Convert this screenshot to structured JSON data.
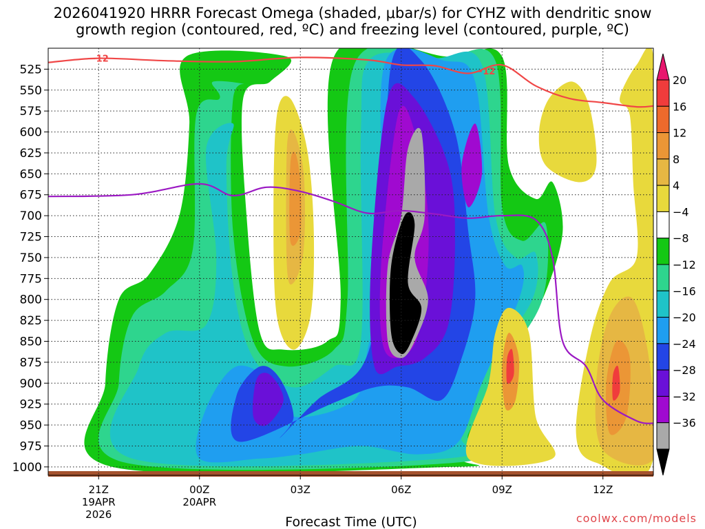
{
  "chart_data": {
    "type": "heatmap",
    "title_line1": "2026041920 HRRR Forecast Omega (shaded, μbar/s) for CYHZ with dendritic snow",
    "title_line2": "growth region (contoured, red, ºC) and freezing level (contoured, purple, ºC)",
    "xlabel": "Forecast Time (UTC)",
    "credit": "coolwx.com/models",
    "x_range_hours": [
      -1.5,
      16.5
    ],
    "y_range_hpa": [
      500,
      1010
    ],
    "x_ticks": [
      {
        "hour": 0,
        "label": "21Z",
        "sub1": "19APR",
        "sub2": "2026"
      },
      {
        "hour": 3,
        "label": "00Z",
        "sub1": "20APR",
        "sub2": ""
      },
      {
        "hour": 6,
        "label": "03Z",
        "sub1": "",
        "sub2": ""
      },
      {
        "hour": 9,
        "label": "06Z",
        "sub1": "",
        "sub2": ""
      },
      {
        "hour": 12,
        "label": "09Z",
        "sub1": "",
        "sub2": ""
      },
      {
        "hour": 15,
        "label": "12Z",
        "sub1": "",
        "sub2": ""
      }
    ],
    "y_ticks": [
      "525",
      "550",
      "575",
      "600",
      "625",
      "650",
      "675",
      "700",
      "725",
      "750",
      "775",
      "800",
      "825",
      "850",
      "875",
      "900",
      "925",
      "950",
      "975",
      "1000"
    ],
    "colorbar": {
      "labels": [
        "20",
        "16",
        "12",
        "8",
        "4",
        "−4",
        "−8",
        "−12",
        "−16",
        "−20",
        "−24",
        "−28",
        "−32",
        "−36"
      ],
      "colors_top_to_bottom": [
        "#e8176e",
        "#f03c3c",
        "#ee6a2c",
        "#eb9636",
        "#e6b743",
        "#e8d93c",
        "#ffffff",
        "#14c814",
        "#2ed58e",
        "#1fc3c8",
        "#1f9ef0",
        "#2345e6",
        "#6a10d8",
        "#a00ad0",
        "#a9a9a9",
        "#000000"
      ]
    },
    "contours": {
      "dgz_label": "−12",
      "dgz_color": "#f04646",
      "freezing_color": "#9b19c3",
      "dgz_minus12_line": [
        [
          -1.5,
          517
        ],
        [
          0,
          512
        ],
        [
          2,
          515
        ],
        [
          4,
          516
        ],
        [
          6,
          511
        ],
        [
          8,
          514
        ],
        [
          9,
          520
        ],
        [
          10,
          521
        ],
        [
          11,
          530
        ],
        [
          12,
          520
        ],
        [
          13,
          545
        ],
        [
          14,
          560
        ],
        [
          15,
          565
        ],
        [
          16,
          570
        ],
        [
          16.5,
          569
        ]
      ],
      "freezing_level_line": [
        [
          -1.5,
          677
        ],
        [
          1,
          675
        ],
        [
          3,
          662
        ],
        [
          4,
          676
        ],
        [
          5,
          666
        ],
        [
          6,
          671
        ],
        [
          7,
          683
        ],
        [
          8,
          697
        ],
        [
          9,
          694
        ],
        [
          10,
          698
        ],
        [
          11,
          703
        ],
        [
          12,
          700
        ],
        [
          13,
          705
        ],
        [
          13.5,
          750
        ],
        [
          13.8,
          850
        ],
        [
          14.5,
          880
        ],
        [
          15,
          920
        ],
        [
          16,
          945
        ],
        [
          16.5,
          948
        ]
      ]
    },
    "omega_regions": [
      {
        "level": "-8",
        "color": "#14c814",
        "pts": [
          [
            0.4,
            1000
          ],
          [
            0.2,
            900
          ],
          [
            0.6,
            800
          ],
          [
            1.5,
            770
          ],
          [
            2.4,
            700
          ],
          [
            2.7,
            590
          ],
          [
            2.6,
            510
          ],
          [
            5.6,
            510
          ],
          [
            5.1,
            540
          ],
          [
            4.3,
            560
          ],
          [
            4.4,
            700
          ],
          [
            4.8,
            840
          ],
          [
            5.5,
            860
          ],
          [
            6.8,
            850
          ],
          [
            7.2,
            800
          ],
          [
            7.0,
            510
          ],
          [
            10.4,
            510
          ],
          [
            12.0,
            510
          ],
          [
            12.2,
            640
          ],
          [
            13.0,
            680
          ],
          [
            13.5,
            660
          ],
          [
            13.8,
            720
          ],
          [
            13.2,
            800
          ],
          [
            12.3,
            860
          ],
          [
            11.2,
            950
          ],
          [
            10.8,
            990
          ],
          [
            10.5,
            1000
          ]
        ]
      },
      {
        "level": "-12",
        "color": "#2ed58e",
        "pts": [
          [
            0.8,
            995
          ],
          [
            0.6,
            900
          ],
          [
            1.0,
            820
          ],
          [
            2.0,
            790
          ],
          [
            2.8,
            740
          ],
          [
            2.9,
            580
          ],
          [
            3.6,
            560
          ],
          [
            3.4,
            540
          ],
          [
            4.5,
            545
          ],
          [
            4.0,
            560
          ],
          [
            4.0,
            720
          ],
          [
            4.6,
            850
          ],
          [
            5.6,
            880
          ],
          [
            7.0,
            860
          ],
          [
            7.4,
            800
          ],
          [
            7.6,
            520
          ],
          [
            10.2,
            512
          ],
          [
            11.8,
            515
          ],
          [
            12.0,
            690
          ],
          [
            12.6,
            730
          ],
          [
            13.3,
            710
          ],
          [
            13.2,
            800
          ],
          [
            12.0,
            880
          ],
          [
            11.0,
            960
          ],
          [
            10.6,
            995
          ]
        ]
      },
      {
        "level": "-16",
        "color": "#1fc3c8",
        "pts": [
          [
            1.0,
            990
          ],
          [
            1.2,
            880
          ],
          [
            2.0,
            840
          ],
          [
            3.2,
            830
          ],
          [
            3.5,
            750
          ],
          [
            3.2,
            620
          ],
          [
            4.0,
            590
          ],
          [
            3.8,
            640
          ],
          [
            4.0,
            780
          ],
          [
            4.6,
            870
          ],
          [
            5.8,
            905
          ],
          [
            7.0,
            880
          ],
          [
            7.8,
            850
          ],
          [
            7.8,
            600
          ],
          [
            8.1,
            512
          ],
          [
            10.0,
            512
          ],
          [
            11.4,
            520
          ],
          [
            11.8,
            700
          ],
          [
            12.4,
            750
          ],
          [
            13.0,
            745
          ],
          [
            12.9,
            800
          ],
          [
            11.6,
            880
          ],
          [
            10.8,
            960
          ],
          [
            10.3,
            990
          ]
        ]
      },
      {
        "level": "-20",
        "color": "#1f9ef0",
        "pts": [
          [
            3.0,
            990
          ],
          [
            3.2,
            930
          ],
          [
            4.1,
            880
          ],
          [
            5.2,
            900
          ],
          [
            5.8,
            940
          ],
          [
            7.6,
            920
          ],
          [
            8.0,
            860
          ],
          [
            8.5,
            760
          ],
          [
            8.5,
            520
          ],
          [
            10.3,
            515
          ],
          [
            11.2,
            540
          ],
          [
            11.6,
            700
          ],
          [
            12.1,
            760
          ],
          [
            12.6,
            760
          ],
          [
            12.5,
            800
          ],
          [
            11.4,
            900
          ],
          [
            10.7,
            970
          ],
          [
            9.5,
            985
          ],
          [
            7.8,
            975
          ],
          [
            6.0,
            985
          ],
          [
            4.8,
            990
          ]
        ]
      },
      {
        "level": "-24",
        "color": "#2345e6",
        "pts": [
          [
            4.2,
            970
          ],
          [
            4.1,
            915
          ],
          [
            4.8,
            880
          ],
          [
            5.4,
            895
          ],
          [
            5.8,
            940
          ],
          [
            5.4,
            965
          ],
          [
            6.5,
            920
          ],
          [
            7.9,
            875
          ],
          [
            8.4,
            760
          ],
          [
            8.7,
            520
          ],
          [
            9.6,
            515
          ],
          [
            10.6,
            600
          ],
          [
            11.0,
            720
          ],
          [
            11.2,
            800
          ],
          [
            10.8,
            870
          ],
          [
            10.2,
            920
          ],
          [
            9.2,
            905
          ],
          [
            8.2,
            905
          ],
          [
            6.9,
            925
          ]
        ]
      },
      {
        "level": "-28",
        "color": "#6a10d8",
        "pts": [
          [
            4.6,
            940
          ],
          [
            4.7,
            895
          ],
          [
            5.1,
            890
          ],
          [
            5.5,
            920
          ],
          [
            5.0,
            950
          ]
        ]
      },
      {
        "level": "-28b",
        "color": "#6a10d8",
        "pts": [
          [
            8.2,
            880
          ],
          [
            8.1,
            760
          ],
          [
            8.6,
            560
          ],
          [
            9.4,
            560
          ],
          [
            10.4,
            640
          ],
          [
            10.6,
            730
          ],
          [
            10.4,
            830
          ],
          [
            9.7,
            870
          ],
          [
            8.9,
            880
          ]
        ]
      },
      {
        "level": "-32",
        "color": "#a00ad0",
        "pts": [
          [
            8.5,
            860
          ],
          [
            8.4,
            760
          ],
          [
            8.9,
            580
          ],
          [
            9.4,
            600
          ],
          [
            9.8,
            700
          ],
          [
            9.7,
            800
          ],
          [
            9.3,
            860
          ]
        ]
      },
      {
        "level": "-32b",
        "color": "#a00ad0",
        "pts": [
          [
            11.0,
            690
          ],
          [
            10.8,
            640
          ],
          [
            11.2,
            590
          ],
          [
            11.4,
            650
          ]
        ]
      },
      {
        "level": "-36",
        "color": "#a9a9a9",
        "pts": [
          [
            8.6,
            850
          ],
          [
            8.6,
            760
          ],
          [
            9.0,
            700
          ],
          [
            9.2,
            620
          ],
          [
            9.6,
            600
          ],
          [
            9.7,
            700
          ],
          [
            9.4,
            750
          ],
          [
            9.8,
            800
          ],
          [
            9.4,
            850
          ],
          [
            9.0,
            870
          ]
        ]
      },
      {
        "level": "-40",
        "color": "#000000",
        "pts": [
          [
            8.7,
            840
          ],
          [
            8.7,
            760
          ],
          [
            9.1,
            700
          ],
          [
            9.4,
            710
          ],
          [
            9.2,
            780
          ],
          [
            9.6,
            810
          ],
          [
            9.3,
            850
          ],
          [
            9.0,
            865
          ]
        ]
      },
      {
        "level": "4",
        "color": "#e8d93c",
        "pts": [
          [
            5.3,
            820
          ],
          [
            5.2,
            700
          ],
          [
            5.3,
            580
          ],
          [
            5.7,
            560
          ],
          [
            6.2,
            620
          ],
          [
            6.4,
            720
          ],
          [
            6.3,
            820
          ],
          [
            5.8,
            860
          ]
        ]
      },
      {
        "level": "8",
        "color": "#e6b743",
        "pts": [
          [
            5.6,
            760
          ],
          [
            5.6,
            620
          ],
          [
            5.8,
            600
          ],
          [
            6.1,
            650
          ],
          [
            6.1,
            740
          ],
          [
            5.8,
            780
          ]
        ]
      },
      {
        "level": "12",
        "color": "#eb9636",
        "pts": [
          [
            5.7,
            730
          ],
          [
            5.7,
            640
          ],
          [
            5.85,
            625
          ],
          [
            6.0,
            660
          ],
          [
            6.0,
            720
          ]
        ]
      },
      {
        "level": "4b",
        "color": "#e8d93c",
        "pts": [
          [
            13.3,
            640
          ],
          [
            13.1,
            600
          ],
          [
            13.4,
            560
          ],
          [
            14.1,
            540
          ],
          [
            14.6,
            570
          ],
          [
            14.8,
            640
          ],
          [
            14.3,
            660
          ]
        ]
      },
      {
        "level": "4c",
        "color": "#e8d93c",
        "pts": [
          [
            15.8,
            580
          ],
          [
            15.5,
            560
          ],
          [
            16.0,
            520
          ],
          [
            16.5,
            510
          ],
          [
            16.5,
            700
          ],
          [
            16.5,
            990
          ],
          [
            14.8,
            995
          ],
          [
            14.2,
            960
          ],
          [
            14.6,
            850
          ],
          [
            15.2,
            780
          ],
          [
            16.0,
            750
          ],
          [
            15.9,
            660
          ]
        ]
      },
      {
        "level": "4d",
        "color": "#e8d93c",
        "pts": [
          [
            11.0,
            990
          ],
          [
            11.6,
            900
          ],
          [
            11.8,
            840
          ],
          [
            12.2,
            810
          ],
          [
            12.8,
            840
          ],
          [
            13.0,
            940
          ],
          [
            13.5,
            990
          ]
        ]
      },
      {
        "level": "8b",
        "color": "#e6b743",
        "pts": [
          [
            15.0,
            980
          ],
          [
            14.8,
            900
          ],
          [
            15.2,
            820
          ],
          [
            15.9,
            800
          ],
          [
            16.4,
            880
          ],
          [
            16.5,
            990
          ]
        ]
      },
      {
        "level": "12b",
        "color": "#eb9636",
        "pts": [
          [
            15.2,
            960
          ],
          [
            15.1,
            900
          ],
          [
            15.4,
            850
          ],
          [
            15.8,
            870
          ],
          [
            15.7,
            940
          ]
        ]
      },
      {
        "level": "12c",
        "color": "#eb9636",
        "pts": [
          [
            12.1,
            930
          ],
          [
            12.0,
            880
          ],
          [
            12.2,
            840
          ],
          [
            12.5,
            870
          ],
          [
            12.4,
            920
          ]
        ]
      },
      {
        "level": "16",
        "color": "#f03c3c",
        "pts": [
          [
            12.15,
            900
          ],
          [
            12.15,
            870
          ],
          [
            12.3,
            860
          ],
          [
            12.35,
            890
          ]
        ]
      },
      {
        "level": "16b",
        "color": "#f03c3c",
        "pts": [
          [
            15.3,
            920
          ],
          [
            15.3,
            890
          ],
          [
            15.45,
            880
          ],
          [
            15.5,
            910
          ]
        ]
      }
    ]
  }
}
